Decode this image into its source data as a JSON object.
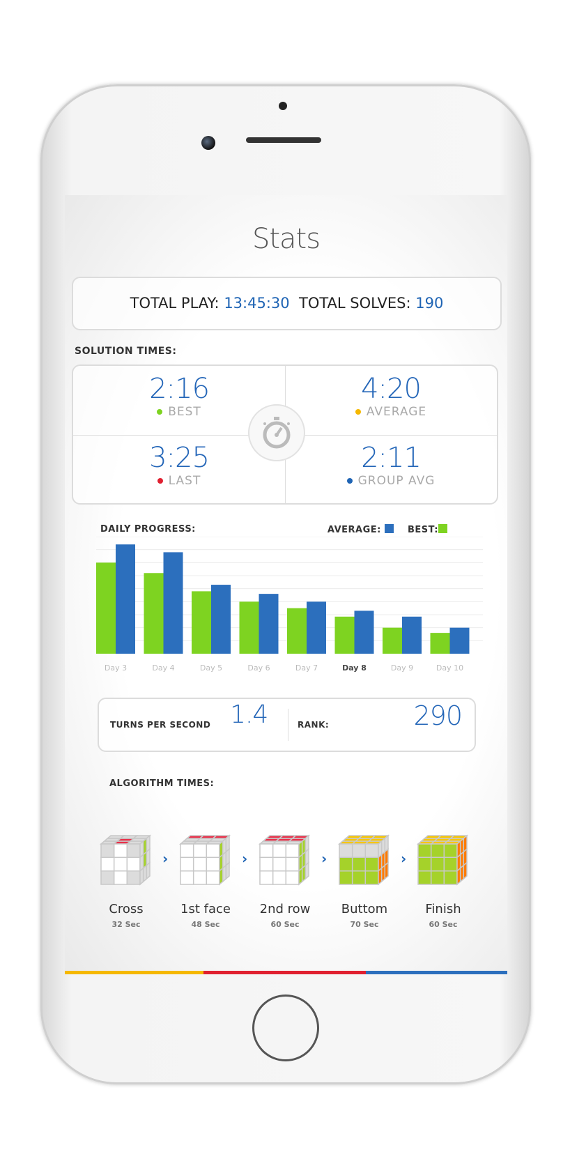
{
  "header": {
    "title": "Stats"
  },
  "totals": {
    "play_label": "TOTAL PLAY:",
    "play_value": "13:45:30",
    "solves_label": "TOTAL SOLVES:",
    "solves_value": "190"
  },
  "solution_times": {
    "label": "SOLUTION TIMES:",
    "items": [
      {
        "value": "2:16",
        "label": "BEST",
        "color": "#7ed321"
      },
      {
        "value": "4:20",
        "label": "AVERAGE",
        "color": "#f5b800"
      },
      {
        "value": "3:25",
        "label": "LAST",
        "color": "#e02030"
      },
      {
        "value": "2:11",
        "label": "GROUP AVG",
        "color": "#1f64b4"
      }
    ],
    "icon": "stopwatch-icon"
  },
  "chart_data": {
    "type": "bar",
    "title": "DAILY PROGRESS:",
    "categories": [
      "Day 3",
      "Day 4",
      "Day 5",
      "Day 6",
      "Day 7",
      "Day 8",
      "Day 9",
      "Day 10"
    ],
    "highlighted_category": "Day 8",
    "series": [
      {
        "name": "BEST:",
        "color": "#7ed321",
        "values": [
          7.0,
          6.2,
          4.8,
          4.0,
          3.5,
          2.85,
          2.0,
          1.6
        ]
      },
      {
        "name": "AVERAGE:",
        "color": "#2c6fbd",
        "values": [
          8.4,
          7.8,
          5.3,
          4.6,
          4.0,
          3.3,
          2.85,
          2.0
        ]
      }
    ],
    "ylim": [
      0,
      9
    ],
    "grid": true,
    "legend": "top-right"
  },
  "metrics": {
    "tps_label": "TURNS PER SECOND",
    "tps_value": "1.4",
    "rank_label": "RANK:",
    "rank_value": "290"
  },
  "algorithms": {
    "label": "ALGORITHM TIMES:",
    "steps": [
      {
        "name": "Cross",
        "time": "32 Sec"
      },
      {
        "name": "1st face",
        "time": "48 Sec"
      },
      {
        "name": "2nd row",
        "time": "60 Sec"
      },
      {
        "name": "Buttom",
        "time": "70 Sec"
      },
      {
        "name": "Finish",
        "time": "60 Sec"
      }
    ],
    "arrow": "chevron-right-icon"
  },
  "colors": {
    "accent": "#1f64b4",
    "bar_yellow": "#f5b800",
    "bar_red": "#e02030",
    "bar_blue": "#2c6fbd"
  }
}
